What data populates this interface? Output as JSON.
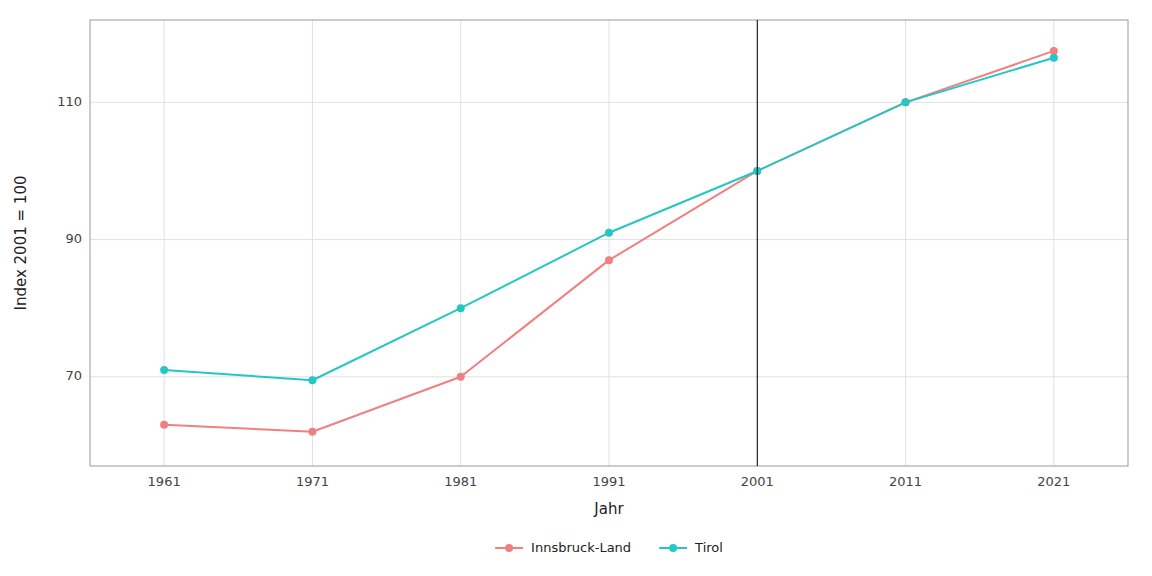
{
  "chart_data": {
    "type": "line",
    "x_label": "Jahr",
    "y_label": "Index 2001 = 100",
    "x": [
      1961,
      1971,
      1981,
      1991,
      2001,
      2011,
      2021
    ],
    "series": [
      {
        "name": "Innsbruck-Land",
        "color": "#F08080",
        "marker": "circle",
        "line_style": "solid",
        "values": [
          63.0,
          62.0,
          70.0,
          87.0,
          100.0,
          110.0,
          117.5
        ]
      },
      {
        "name": "Tirol",
        "color": "#26C6C6",
        "marker": "circle",
        "line_style": "solid",
        "values": [
          71.0,
          69.5,
          80.0,
          91.0,
          100.0,
          110.0,
          116.5
        ]
      }
    ],
    "reference_x": 2001,
    "xlim": [
      1956,
      2026
    ],
    "xticks": [
      1961,
      1971,
      1981,
      1991,
      2001,
      2011,
      2021
    ],
    "ylim": [
      57,
      122
    ],
    "yticks": [
      70,
      90,
      110
    ],
    "grid": true,
    "legend": "bottom"
  }
}
